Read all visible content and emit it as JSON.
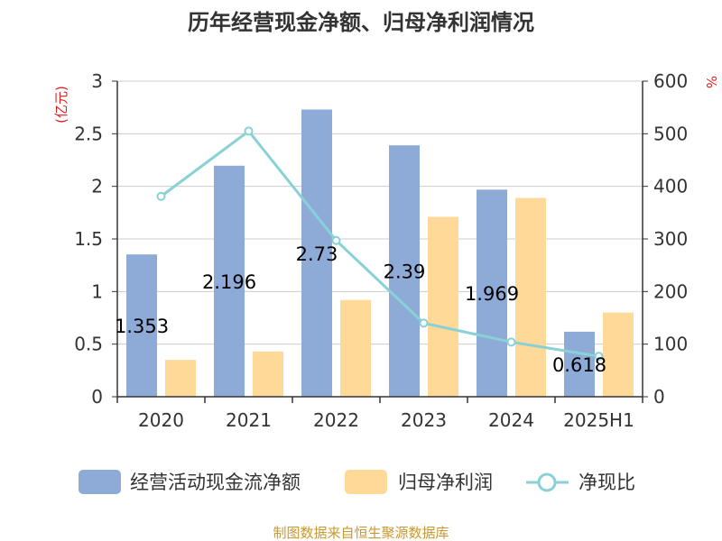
{
  "chart_data": {
    "type": "bar",
    "title": "历年经营现金净额、归母净利润情况",
    "categories": [
      "2020",
      "2021",
      "2022",
      "2023",
      "2024",
      "2025H1"
    ],
    "series": [
      {
        "name": "经营活动现金流净额",
        "axis": "left",
        "kind": "bar",
        "color": "#8eabd8",
        "values": [
          1.353,
          2.196,
          2.73,
          2.39,
          1.969,
          0.618
        ],
        "labels": [
          "1.353",
          "2.196",
          "2.73",
          "2.39",
          "1.969",
          "0.618"
        ]
      },
      {
        "name": "归母净利润",
        "axis": "left",
        "kind": "bar",
        "color": "#fed998",
        "values": [
          0.35,
          0.43,
          0.92,
          1.71,
          1.89,
          0.8
        ]
      },
      {
        "name": "净现比",
        "axis": "right",
        "kind": "line",
        "color": "#88d1d6",
        "values": [
          381,
          505,
          297,
          140,
          104,
          77
        ]
      }
    ],
    "y_left": {
      "label": "(亿元)",
      "ylim": [
        0,
        3
      ],
      "ticks": [
        "0",
        "0.5",
        "1",
        "1.5",
        "2",
        "2.5",
        "3"
      ]
    },
    "y_right": {
      "label": "%",
      "ylim": [
        0,
        600
      ],
      "ticks": [
        "0",
        "100",
        "200",
        "300",
        "400",
        "500",
        "600"
      ]
    },
    "grid": true,
    "legend": "bottom",
    "source": "制图数据来自恒生聚源数据库",
    "colors": {
      "axis_label": "#e02020",
      "source": "#c8992e",
      "grid": "#cccccc",
      "axis": "#333333"
    }
  }
}
